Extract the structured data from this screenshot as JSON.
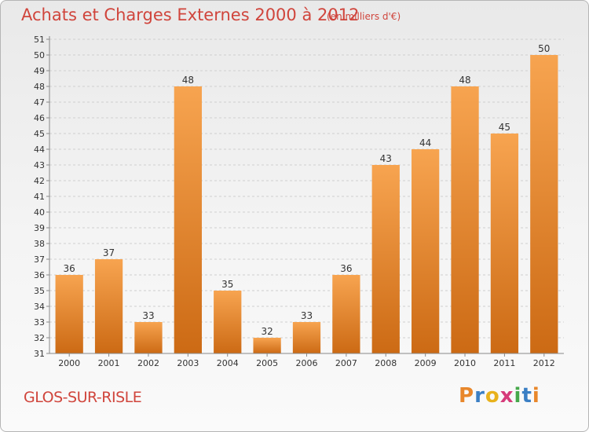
{
  "header": {
    "title": "Achats et Charges Externes 2000 à 2012",
    "unit": "(en milliers d'€)"
  },
  "footer": {
    "commune": "GLOS-SUR-RISLE",
    "logo_letters": [
      "P",
      "r",
      "o",
      "x",
      "i",
      "t",
      "i"
    ],
    "logo_colors": [
      "#e8872b",
      "#3b7fc4",
      "#e8b21c",
      "#d63b7a",
      "#46a84a",
      "#3b7fc4",
      "#e8872b"
    ]
  },
  "colors": {
    "bar_light": "#f7a450",
    "bar_dark": "#cc6a14",
    "text": "#d0453c",
    "axis_text": "#333333"
  },
  "chart_data": {
    "type": "bar",
    "title": "Achats et Charges Externes 2000 à 2012",
    "categories": [
      "2000",
      "2001",
      "2002",
      "2003",
      "2004",
      "2005",
      "2006",
      "2007",
      "2008",
      "2009",
      "2010",
      "2011",
      "2012"
    ],
    "values": [
      36,
      37,
      33,
      48,
      35,
      32,
      33,
      36,
      43,
      44,
      48,
      45,
      50
    ],
    "ylim": [
      31,
      51
    ],
    "yticks": [
      31,
      32,
      33,
      34,
      35,
      36,
      37,
      38,
      39,
      40,
      41,
      42,
      43,
      44,
      45,
      46,
      47,
      48,
      49,
      50,
      51
    ],
    "grid": true
  }
}
